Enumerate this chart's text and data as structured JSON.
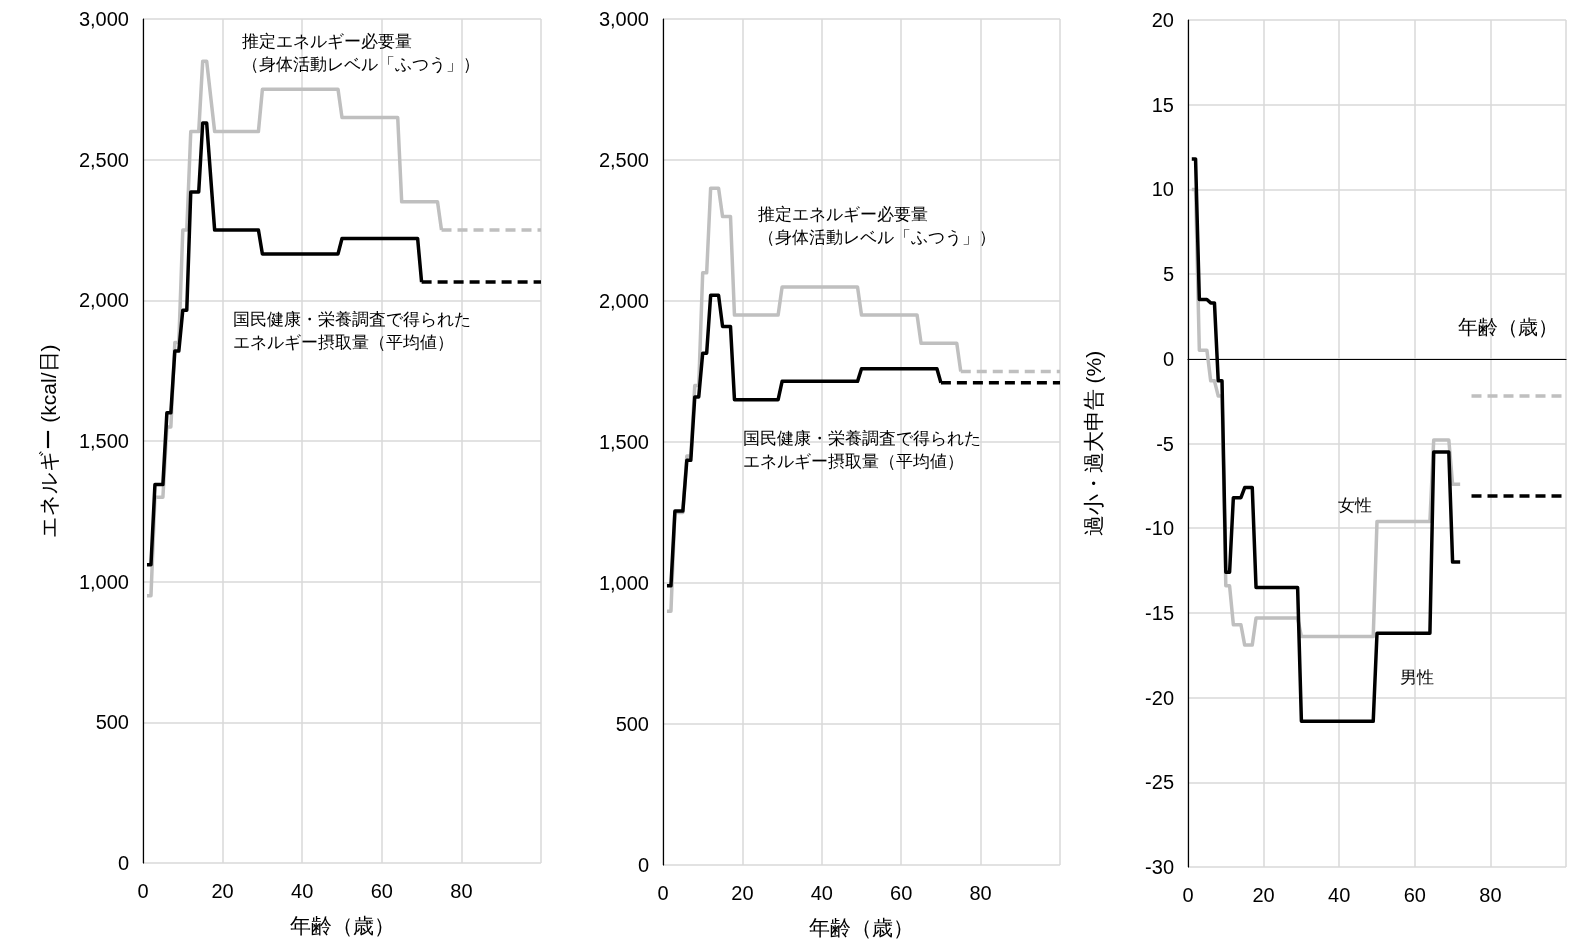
{
  "chart_data": [
    {
      "type": "line",
      "xlabel": "年齢（歳）",
      "ylabel": "エネルギー (kcal/日)",
      "xlim": [
        0,
        100
      ],
      "ylim": [
        0,
        3000
      ],
      "xticks": [
        0,
        20,
        40,
        60,
        80
      ],
      "yticks": [
        0,
        500,
        {
          "value": 1000,
          "label": "1,000"
        },
        {
          "value": 1500,
          "label": "1,500"
        },
        {
          "value": 2000,
          "label": "2,000"
        },
        {
          "value": 2500,
          "label": "2,500"
        },
        {
          "value": 3000,
          "label": "3,000"
        }
      ],
      "grid": true,
      "marker": "none",
      "line_style": "solid",
      "annotations": [
        "推定エネルギー必要量（身体活動レベル「ふつう」）",
        "国民健康・栄養調査で得られたエネルギー摂取量（平均値）"
      ],
      "series": [
        {
          "color": "#bfbfbf",
          "x": [
            1,
            2,
            3,
            5,
            6,
            7,
            8,
            9,
            10,
            11,
            12,
            14,
            15,
            16,
            18,
            29,
            30,
            49,
            50,
            64,
            65,
            74,
            75
          ],
          "values": [
            950,
            950,
            1300,
            1300,
            1550,
            1550,
            1850,
            1850,
            2250,
            2250,
            2600,
            2600,
            2850,
            2850,
            2600,
            2600,
            2750,
            2750,
            2650,
            2650,
            2350,
            2350,
            2250
          ]
        },
        {
          "color": "#bfbfbf",
          "line_style": "dashed",
          "x": [
            75,
            100
          ],
          "values": [
            2250,
            2250
          ]
        },
        {
          "color": "#000000",
          "x": [
            1,
            2,
            3,
            5,
            6,
            7,
            8,
            9,
            10,
            11,
            12,
            14,
            15,
            16,
            18,
            29,
            30,
            49,
            50,
            69,
            70
          ],
          "values": [
            1060,
            1060,
            1345,
            1345,
            1600,
            1600,
            1820,
            1820,
            1965,
            1965,
            2385,
            2385,
            2630,
            2630,
            2250,
            2250,
            2165,
            2165,
            2220,
            2220,
            2065
          ]
        },
        {
          "color": "#000000",
          "line_style": "dashed",
          "x": [
            70,
            100
          ],
          "values": [
            2065,
            2065
          ]
        }
      ]
    },
    {
      "type": "line",
      "xlabel": "年齢（歳）",
      "xlim": [
        0,
        100
      ],
      "ylim": [
        0,
        3000
      ],
      "xticks": [
        0,
        20,
        40,
        60,
        80
      ],
      "yticks": [
        0,
        500,
        {
          "value": 1000,
          "label": "1,000"
        },
        {
          "value": 1500,
          "label": "1,500"
        },
        {
          "value": 2000,
          "label": "2,000"
        },
        {
          "value": 2500,
          "label": "2,500"
        },
        {
          "value": 3000,
          "label": "3,000"
        }
      ],
      "grid": true,
      "marker": "none",
      "line_style": "solid",
      "annotations": [
        "推定エネルギー必要量（身体活動レベル「ふつう」）",
        "国民健康・栄養調査で得られたエネルギー摂取量（平均値）"
      ],
      "series": [
        {
          "color": "#bfbfbf",
          "x": [
            1,
            2,
            3,
            5,
            6,
            7,
            8,
            9,
            10,
            11,
            12,
            14,
            15,
            17,
            18,
            29,
            30,
            49,
            50,
            64,
            65,
            74,
            75
          ],
          "values": [
            900,
            900,
            1250,
            1250,
            1450,
            1450,
            1700,
            1700,
            2100,
            2100,
            2400,
            2400,
            2300,
            2300,
            1950,
            1950,
            2050,
            2050,
            1950,
            1950,
            1850,
            1850,
            1750
          ]
        },
        {
          "color": "#bfbfbf",
          "line_style": "dashed",
          "x": [
            75,
            100
          ],
          "values": [
            1750,
            1750
          ]
        },
        {
          "color": "#000000",
          "x": [
            1,
            2,
            3,
            5,
            6,
            7,
            8,
            9,
            10,
            11,
            12,
            14,
            15,
            17,
            18,
            29,
            30,
            49,
            50,
            69,
            70
          ],
          "values": [
            990,
            990,
            1255,
            1255,
            1435,
            1435,
            1660,
            1660,
            1815,
            1815,
            2020,
            2020,
            1910,
            1910,
            1650,
            1650,
            1715,
            1715,
            1760,
            1760,
            1710
          ]
        },
        {
          "color": "#000000",
          "line_style": "dashed",
          "x": [
            70,
            100
          ],
          "values": [
            1710,
            1710
          ]
        }
      ]
    },
    {
      "type": "line",
      "xlabel": "年齢（歳）",
      "ylabel": "過小・過大申告 (%)",
      "xlim": [
        0,
        100
      ],
      "ylim": [
        -30,
        20
      ],
      "xticks": [
        0,
        20,
        40,
        60,
        80
      ],
      "yticks": [
        -30,
        -25,
        -20,
        -15,
        -10,
        -5,
        0,
        5,
        10,
        15,
        20
      ],
      "grid": true,
      "marker": "none",
      "line_style": "solid",
      "annotations": [
        "女性",
        "男性"
      ],
      "series": [
        {
          "color": "#bfbfbf",
          "x": [
            1,
            2,
            3,
            5,
            6,
            7,
            8,
            9,
            10,
            11,
            12,
            14,
            15,
            17,
            18,
            29,
            30,
            49,
            50,
            64,
            65,
            69,
            70,
            72
          ],
          "values": [
            10,
            10,
            0.5,
            0.5,
            -1.3,
            -1.3,
            -2.2,
            -2.2,
            -13.4,
            -13.4,
            -15.7,
            -15.7,
            -16.9,
            -16.9,
            -15.3,
            -15.3,
            -16.4,
            -16.4,
            -9.6,
            -9.6,
            -4.8,
            -4.8,
            -7.4,
            -7.4
          ]
        },
        {
          "color": "#bfbfbf",
          "line_style": "dashed",
          "x": [
            75,
            100
          ],
          "values": [
            -2.2,
            -2.2
          ]
        },
        {
          "color": "#000000",
          "x": [
            1,
            2,
            3,
            5,
            6,
            7,
            8,
            9,
            10,
            11,
            12,
            14,
            15,
            17,
            18,
            29,
            30,
            49,
            50,
            64,
            65,
            69,
            70,
            72
          ],
          "values": [
            11.8,
            11.8,
            3.5,
            3.5,
            3.3,
            3.3,
            -1.3,
            -1.3,
            -12.6,
            -12.6,
            -8.2,
            -8.2,
            -7.6,
            -7.6,
            -13.5,
            -13.5,
            -21.4,
            -21.4,
            -16.2,
            -16.2,
            -5.5,
            -5.5,
            -12,
            -12
          ]
        },
        {
          "color": "#000000",
          "line_style": "dashed",
          "x": [
            75,
            100
          ],
          "values": [
            -8.1,
            -8.1
          ]
        }
      ]
    }
  ]
}
